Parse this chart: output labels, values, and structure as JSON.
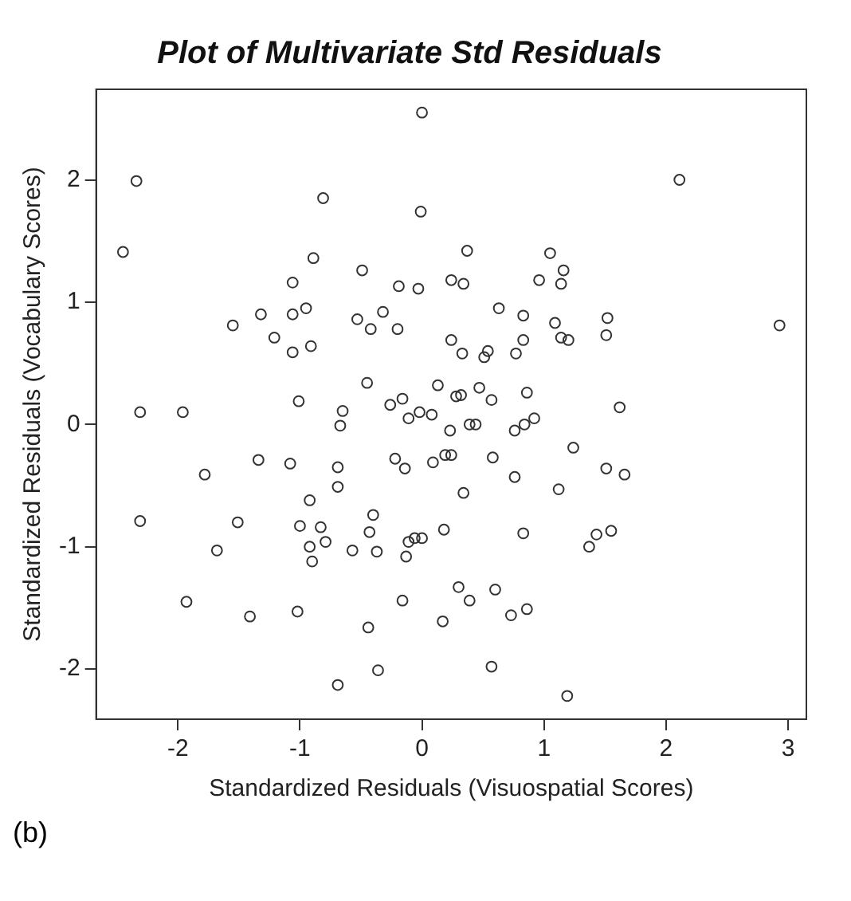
{
  "chart_data": {
    "type": "scatter",
    "title": "Plot of Multivariate Std Residuals",
    "xlabel": "Standardized Residuals (Visuospatial Scores)",
    "ylabel": "Standardized Residuals (Vocabulary Scores)",
    "annotations": [
      "(b)"
    ],
    "xlim": [
      -2.67,
      3.15
    ],
    "ylim": [
      -2.41,
      2.74
    ],
    "xticks": [
      -2,
      -1,
      0,
      1,
      2,
      3
    ],
    "yticks": [
      -2,
      -1,
      0,
      1,
      2
    ],
    "grid": false,
    "legend": false,
    "marker": "circle",
    "series": [
      {
        "color": "#333333",
        "x": [
          2.93,
          2.11,
          1.62,
          1.66,
          1.51,
          1.52,
          1.51,
          1.55,
          1.43,
          1.37,
          1.24,
          1.2,
          1.14,
          1.09,
          1.16,
          1.14,
          1.05,
          1.12,
          1.19,
          0.96,
          0.92,
          0.86,
          0.84,
          0.76,
          0.83,
          0.83,
          0.77,
          0.83,
          0.86,
          0.73,
          0.76,
          0.63,
          0.58,
          0.57,
          0.6,
          0.57,
          0.54,
          0.51,
          0.47,
          0.44,
          0.39,
          0.37,
          0.34,
          0.33,
          0.32,
          0.28,
          0.34,
          0.39,
          0.3,
          0.24,
          0.24,
          0.23,
          0.24,
          0.19,
          0.18,
          0.17,
          0.13,
          0.09,
          0.08,
          0.0,
          -0.01,
          -0.03,
          -0.02,
          0.0,
          -0.06,
          -0.11,
          -0.13,
          -0.11,
          -0.16,
          -0.19,
          -0.2,
          -0.16,
          -0.14,
          -0.22,
          -0.26,
          -0.32,
          -0.36,
          -0.42,
          -0.37,
          -0.4,
          -0.43,
          -0.44,
          -0.45,
          -0.49,
          -0.53,
          -0.57,
          -0.65,
          -0.67,
          -0.69,
          -0.69,
          -0.69,
          -0.81,
          -0.89,
          -0.83,
          -0.79,
          -0.92,
          -0.9,
          -0.92,
          -0.91,
          -0.95,
          -1.0,
          -1.01,
          -1.02,
          -1.06,
          -1.06,
          -1.06,
          -1.08,
          -1.21,
          -1.32,
          -1.34,
          -1.55,
          -1.51,
          -1.41,
          -1.68,
          -1.78,
          -1.96,
          -1.93,
          -2.34,
          -2.45,
          -2.31,
          -2.31
        ],
        "values": [
          0.81,
          2.0,
          0.14,
          -0.41,
          -0.36,
          0.87,
          0.73,
          -0.87,
          -0.9,
          -1.0,
          -0.19,
          0.69,
          0.71,
          0.83,
          1.26,
          1.15,
          1.4,
          -0.53,
          -2.22,
          1.18,
          0.05,
          0.26,
          0.0,
          -0.05,
          0.89,
          0.69,
          0.58,
          -0.89,
          -1.51,
          -1.56,
          -0.43,
          0.95,
          -0.27,
          0.2,
          -1.35,
          -1.98,
          0.6,
          0.55,
          0.3,
          0.0,
          0.0,
          1.42,
          1.15,
          0.58,
          0.24,
          0.23,
          -0.56,
          -1.44,
          -1.33,
          1.18,
          0.69,
          -0.05,
          -0.25,
          -0.25,
          -0.86,
          -1.61,
          0.32,
          -0.31,
          0.08,
          2.55,
          1.74,
          1.11,
          0.1,
          -0.93,
          -0.93,
          -0.96,
          -1.08,
          0.05,
          -1.44,
          1.13,
          0.78,
          0.21,
          -0.36,
          -0.28,
          0.16,
          0.92,
          -2.01,
          0.78,
          -1.04,
          -0.74,
          -0.88,
          -1.66,
          0.34,
          1.26,
          0.86,
          -1.03,
          0.11,
          -0.01,
          -0.35,
          -0.51,
          -2.13,
          1.85,
          1.36,
          -0.84,
          -0.96,
          -1.0,
          -1.12,
          -0.62,
          0.64,
          0.95,
          -0.83,
          0.19,
          -1.53,
          1.16,
          0.9,
          0.59,
          -0.32,
          0.71,
          0.9,
          -0.29,
          0.81,
          -0.8,
          -1.57,
          -1.03,
          -0.41,
          0.1,
          -1.45,
          1.99,
          1.41,
          0.1,
          -0.79
        ]
      }
    ]
  }
}
